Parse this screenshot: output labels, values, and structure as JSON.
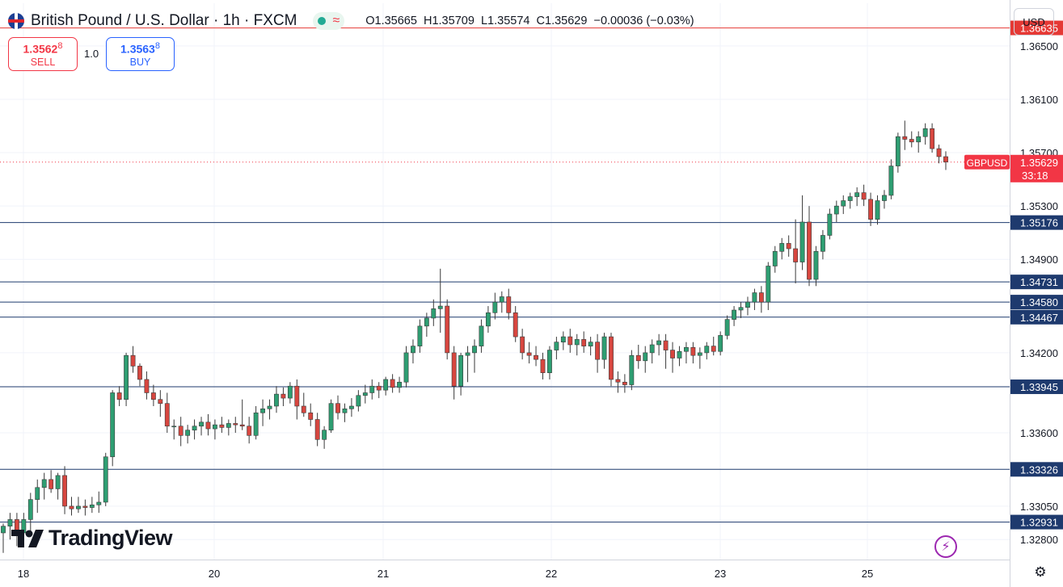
{
  "header": {
    "title": "British Pound / U.S. Dollar · 1h · FXCM",
    "open_label": "O",
    "open": "1.35665",
    "high_label": "H",
    "high": "1.35709",
    "low_label": "L",
    "low": "1.35574",
    "close_label": "C",
    "close": "1.35629",
    "change": "−0.00036 (−0.03%)",
    "pill_icon": "wave-icon"
  },
  "trade": {
    "sell_price": "1.3562",
    "sell_price_sup": "8",
    "sell_label": "SELL",
    "lot": "1.0",
    "buy_price": "1.3563",
    "buy_price_sup": "8",
    "buy_label": "BUY"
  },
  "currency_button": "USD",
  "logo_text": "TradingView",
  "colors": {
    "up": "#2e9e72",
    "down": "#d7463f",
    "level": "#1e3a6e",
    "resistance": "#e53935",
    "price": "#f23645"
  },
  "chart_data": {
    "type": "candlestick",
    "timeframe": "1h",
    "symbol": "GBPUSD",
    "xlabels": [
      "18",
      "20",
      "21",
      "22",
      "23",
      "25"
    ],
    "y_ticks": [
      "1.36500",
      "1.36100",
      "1.35700",
      "1.35300",
      "1.34900",
      "1.34200",
      "1.33600",
      "1.33050",
      "1.32800"
    ],
    "ylim": [
      1.3265,
      1.3682
    ],
    "grid": true,
    "current_price": {
      "label": "GBPUSD",
      "value": "1.35629",
      "countdown": "33:18"
    },
    "resistance_level": "1.36635",
    "levels": [
      "1.35176",
      "1.34731",
      "1.34580",
      "1.34467",
      "1.33945",
      "1.33326",
      "1.32931"
    ],
    "candles": [
      {
        "o": 1.3285,
        "h": 1.3292,
        "l": 1.327,
        "c": 1.329
      },
      {
        "o": 1.329,
        "h": 1.33,
        "l": 1.328,
        "c": 1.3295
      },
      {
        "o": 1.3295,
        "h": 1.33,
        "l": 1.3275,
        "c": 1.3285
      },
      {
        "o": 1.3285,
        "h": 1.33,
        "l": 1.328,
        "c": 1.3295
      },
      {
        "o": 1.3295,
        "h": 1.3315,
        "l": 1.3285,
        "c": 1.331
      },
      {
        "o": 1.331,
        "h": 1.3325,
        "l": 1.33,
        "c": 1.3319
      },
      {
        "o": 1.3319,
        "h": 1.333,
        "l": 1.331,
        "c": 1.3325
      },
      {
        "o": 1.3325,
        "h": 1.3332,
        "l": 1.3315,
        "c": 1.3318
      },
      {
        "o": 1.3318,
        "h": 1.333,
        "l": 1.331,
        "c": 1.3328
      },
      {
        "o": 1.3328,
        "h": 1.3335,
        "l": 1.3299,
        "c": 1.3305
      },
      {
        "o": 1.3305,
        "h": 1.3312,
        "l": 1.3298,
        "c": 1.3303
      },
      {
        "o": 1.3303,
        "h": 1.3312,
        "l": 1.33,
        "c": 1.3305
      },
      {
        "o": 1.3305,
        "h": 1.331,
        "l": 1.3298,
        "c": 1.3304
      },
      {
        "o": 1.3304,
        "h": 1.3312,
        "l": 1.33,
        "c": 1.3306
      },
      {
        "o": 1.3306,
        "h": 1.3316,
        "l": 1.33,
        "c": 1.3308
      },
      {
        "o": 1.3308,
        "h": 1.3345,
        "l": 1.3305,
        "c": 1.3342
      },
      {
        "o": 1.3342,
        "h": 1.3392,
        "l": 1.3335,
        "c": 1.339
      },
      {
        "o": 1.339,
        "h": 1.3395,
        "l": 1.338,
        "c": 1.3385
      },
      {
        "o": 1.3385,
        "h": 1.342,
        "l": 1.338,
        "c": 1.3418
      },
      {
        "o": 1.3418,
        "h": 1.3425,
        "l": 1.3405,
        "c": 1.341
      },
      {
        "o": 1.341,
        "h": 1.3412,
        "l": 1.3395,
        "c": 1.34
      },
      {
        "o": 1.34,
        "h": 1.3406,
        "l": 1.3385,
        "c": 1.339
      },
      {
        "o": 1.339,
        "h": 1.3396,
        "l": 1.338,
        "c": 1.3385
      },
      {
        "o": 1.3385,
        "h": 1.3392,
        "l": 1.3372,
        "c": 1.3382
      },
      {
        "o": 1.3382,
        "h": 1.339,
        "l": 1.336,
        "c": 1.3365
      },
      {
        "o": 1.3365,
        "h": 1.337,
        "l": 1.3355,
        "c": 1.3365
      },
      {
        "o": 1.3365,
        "h": 1.3372,
        "l": 1.335,
        "c": 1.3358
      },
      {
        "o": 1.3358,
        "h": 1.3366,
        "l": 1.3352,
        "c": 1.3362
      },
      {
        "o": 1.3362,
        "h": 1.337,
        "l": 1.3355,
        "c": 1.3365
      },
      {
        "o": 1.3365,
        "h": 1.3372,
        "l": 1.3358,
        "c": 1.3368
      },
      {
        "o": 1.3368,
        "h": 1.3374,
        "l": 1.3358,
        "c": 1.3363
      },
      {
        "o": 1.3363,
        "h": 1.337,
        "l": 1.3355,
        "c": 1.3366
      },
      {
        "o": 1.3366,
        "h": 1.3372,
        "l": 1.336,
        "c": 1.3364
      },
      {
        "o": 1.3364,
        "h": 1.337,
        "l": 1.3358,
        "c": 1.3367
      },
      {
        "o": 1.3367,
        "h": 1.3372,
        "l": 1.336,
        "c": 1.3366
      },
      {
        "o": 1.3366,
        "h": 1.3385,
        "l": 1.3362,
        "c": 1.3365
      },
      {
        "o": 1.3365,
        "h": 1.3372,
        "l": 1.3352,
        "c": 1.3358
      },
      {
        "o": 1.3358,
        "h": 1.338,
        "l": 1.3355,
        "c": 1.3375
      },
      {
        "o": 1.3375,
        "h": 1.3385,
        "l": 1.3365,
        "c": 1.3378
      },
      {
        "o": 1.3378,
        "h": 1.3385,
        "l": 1.337,
        "c": 1.338
      },
      {
        "o": 1.338,
        "h": 1.3395,
        "l": 1.3375,
        "c": 1.3389
      },
      {
        "o": 1.3389,
        "h": 1.3394,
        "l": 1.338,
        "c": 1.3386
      },
      {
        "o": 1.3386,
        "h": 1.3398,
        "l": 1.3382,
        "c": 1.3395
      },
      {
        "o": 1.3395,
        "h": 1.34,
        "l": 1.337,
        "c": 1.338
      },
      {
        "o": 1.338,
        "h": 1.339,
        "l": 1.3372,
        "c": 1.3375
      },
      {
        "o": 1.3375,
        "h": 1.3382,
        "l": 1.3365,
        "c": 1.337
      },
      {
        "o": 1.337,
        "h": 1.3375,
        "l": 1.335,
        "c": 1.3355
      },
      {
        "o": 1.3355,
        "h": 1.3365,
        "l": 1.3348,
        "c": 1.3362
      },
      {
        "o": 1.3362,
        "h": 1.3385,
        "l": 1.336,
        "c": 1.3382
      },
      {
        "o": 1.3382,
        "h": 1.3388,
        "l": 1.337,
        "c": 1.3375
      },
      {
        "o": 1.3375,
        "h": 1.3382,
        "l": 1.3368,
        "c": 1.3378
      },
      {
        "o": 1.3378,
        "h": 1.3386,
        "l": 1.3372,
        "c": 1.338
      },
      {
        "o": 1.338,
        "h": 1.3392,
        "l": 1.3376,
        "c": 1.3388
      },
      {
        "o": 1.3388,
        "h": 1.3396,
        "l": 1.3382,
        "c": 1.339
      },
      {
        "o": 1.339,
        "h": 1.34,
        "l": 1.3385,
        "c": 1.3395
      },
      {
        "o": 1.3395,
        "h": 1.3398,
        "l": 1.3386,
        "c": 1.3392
      },
      {
        "o": 1.3392,
        "h": 1.3402,
        "l": 1.3388,
        "c": 1.34
      },
      {
        "o": 1.34,
        "h": 1.3404,
        "l": 1.339,
        "c": 1.3394
      },
      {
        "o": 1.3394,
        "h": 1.3402,
        "l": 1.339,
        "c": 1.3398
      },
      {
        "o": 1.3398,
        "h": 1.3425,
        "l": 1.3394,
        "c": 1.342
      },
      {
        "o": 1.342,
        "h": 1.343,
        "l": 1.3412,
        "c": 1.3425
      },
      {
        "o": 1.3425,
        "h": 1.3445,
        "l": 1.342,
        "c": 1.344
      },
      {
        "o": 1.344,
        "h": 1.345,
        "l": 1.3432,
        "c": 1.3446
      },
      {
        "o": 1.3446,
        "h": 1.346,
        "l": 1.344,
        "c": 1.3453
      },
      {
        "o": 1.3453,
        "h": 1.3483,
        "l": 1.3435,
        "c": 1.3455
      },
      {
        "o": 1.3455,
        "h": 1.346,
        "l": 1.3415,
        "c": 1.342
      },
      {
        "o": 1.342,
        "h": 1.3425,
        "l": 1.3385,
        "c": 1.3395
      },
      {
        "o": 1.3395,
        "h": 1.342,
        "l": 1.3388,
        "c": 1.3418
      },
      {
        "o": 1.3418,
        "h": 1.3425,
        "l": 1.3398,
        "c": 1.342
      },
      {
        "o": 1.342,
        "h": 1.343,
        "l": 1.3405,
        "c": 1.3425
      },
      {
        "o": 1.3425,
        "h": 1.3445,
        "l": 1.342,
        "c": 1.344
      },
      {
        "o": 1.344,
        "h": 1.3455,
        "l": 1.3435,
        "c": 1.345
      },
      {
        "o": 1.345,
        "h": 1.3465,
        "l": 1.3445,
        "c": 1.3458
      },
      {
        "o": 1.3458,
        "h": 1.3466,
        "l": 1.345,
        "c": 1.3462
      },
      {
        "o": 1.3462,
        "h": 1.3468,
        "l": 1.3445,
        "c": 1.345
      },
      {
        "o": 1.345,
        "h": 1.3455,
        "l": 1.3428,
        "c": 1.3432
      },
      {
        "o": 1.3432,
        "h": 1.3438,
        "l": 1.3415,
        "c": 1.342
      },
      {
        "o": 1.342,
        "h": 1.3428,
        "l": 1.3412,
        "c": 1.3418
      },
      {
        "o": 1.3418,
        "h": 1.3425,
        "l": 1.341,
        "c": 1.3415
      },
      {
        "o": 1.3415,
        "h": 1.342,
        "l": 1.34,
        "c": 1.3405
      },
      {
        "o": 1.3405,
        "h": 1.3425,
        "l": 1.34,
        "c": 1.3422
      },
      {
        "o": 1.3422,
        "h": 1.3432,
        "l": 1.3415,
        "c": 1.3428
      },
      {
        "o": 1.3428,
        "h": 1.3436,
        "l": 1.3422,
        "c": 1.3432
      },
      {
        "o": 1.3432,
        "h": 1.3438,
        "l": 1.342,
        "c": 1.3426
      },
      {
        "o": 1.3426,
        "h": 1.3434,
        "l": 1.3418,
        "c": 1.343
      },
      {
        "o": 1.343,
        "h": 1.3436,
        "l": 1.342,
        "c": 1.3425
      },
      {
        "o": 1.3425,
        "h": 1.3432,
        "l": 1.3418,
        "c": 1.3428
      },
      {
        "o": 1.3428,
        "h": 1.3434,
        "l": 1.3405,
        "c": 1.3415
      },
      {
        "o": 1.3415,
        "h": 1.3435,
        "l": 1.3408,
        "c": 1.3432
      },
      {
        "o": 1.3432,
        "h": 1.3435,
        "l": 1.3395,
        "c": 1.34
      },
      {
        "o": 1.34,
        "h": 1.3406,
        "l": 1.339,
        "c": 1.3398
      },
      {
        "o": 1.3398,
        "h": 1.3404,
        "l": 1.339,
        "c": 1.3396
      },
      {
        "o": 1.3396,
        "h": 1.3422,
        "l": 1.3392,
        "c": 1.3418
      },
      {
        "o": 1.3418,
        "h": 1.3426,
        "l": 1.3408,
        "c": 1.3414
      },
      {
        "o": 1.3414,
        "h": 1.3425,
        "l": 1.3405,
        "c": 1.342
      },
      {
        "o": 1.342,
        "h": 1.343,
        "l": 1.3412,
        "c": 1.3426
      },
      {
        "o": 1.3426,
        "h": 1.3434,
        "l": 1.3418,
        "c": 1.3429
      },
      {
        "o": 1.3429,
        "h": 1.3434,
        "l": 1.3408,
        "c": 1.3422
      },
      {
        "o": 1.3422,
        "h": 1.3428,
        "l": 1.3405,
        "c": 1.3416
      },
      {
        "o": 1.3416,
        "h": 1.3425,
        "l": 1.341,
        "c": 1.3421
      },
      {
        "o": 1.3421,
        "h": 1.3428,
        "l": 1.3412,
        "c": 1.3424
      },
      {
        "o": 1.3424,
        "h": 1.3428,
        "l": 1.3412,
        "c": 1.3418
      },
      {
        "o": 1.3418,
        "h": 1.3424,
        "l": 1.3408,
        "c": 1.342
      },
      {
        "o": 1.342,
        "h": 1.3428,
        "l": 1.3415,
        "c": 1.3425
      },
      {
        "o": 1.3425,
        "h": 1.3432,
        "l": 1.3418,
        "c": 1.3421
      },
      {
        "o": 1.3421,
        "h": 1.3436,
        "l": 1.3418,
        "c": 1.3433
      },
      {
        "o": 1.3433,
        "h": 1.3448,
        "l": 1.343,
        "c": 1.3445
      },
      {
        "o": 1.3445,
        "h": 1.3455,
        "l": 1.344,
        "c": 1.3452
      },
      {
        "o": 1.3452,
        "h": 1.3458,
        "l": 1.3446,
        "c": 1.3454
      },
      {
        "o": 1.3454,
        "h": 1.3462,
        "l": 1.3448,
        "c": 1.3458
      },
      {
        "o": 1.3458,
        "h": 1.3468,
        "l": 1.3452,
        "c": 1.3465
      },
      {
        "o": 1.3465,
        "h": 1.347,
        "l": 1.345,
        "c": 1.3458
      },
      {
        "o": 1.3458,
        "h": 1.3488,
        "l": 1.3452,
        "c": 1.3485
      },
      {
        "o": 1.3485,
        "h": 1.35,
        "l": 1.348,
        "c": 1.3496
      },
      {
        "o": 1.3496,
        "h": 1.3506,
        "l": 1.349,
        "c": 1.3502
      },
      {
        "o": 1.3502,
        "h": 1.3508,
        "l": 1.3492,
        "c": 1.3498
      },
      {
        "o": 1.3498,
        "h": 1.352,
        "l": 1.3472,
        "c": 1.3488
      },
      {
        "o": 1.3488,
        "h": 1.3538,
        "l": 1.3482,
        "c": 1.3518
      },
      {
        "o": 1.3518,
        "h": 1.353,
        "l": 1.347,
        "c": 1.3475
      },
      {
        "o": 1.3475,
        "h": 1.35,
        "l": 1.347,
        "c": 1.3496
      },
      {
        "o": 1.3496,
        "h": 1.3512,
        "l": 1.349,
        "c": 1.3508
      },
      {
        "o": 1.3508,
        "h": 1.3528,
        "l": 1.3505,
        "c": 1.3524
      },
      {
        "o": 1.3524,
        "h": 1.3534,
        "l": 1.3518,
        "c": 1.353
      },
      {
        "o": 1.353,
        "h": 1.3538,
        "l": 1.3524,
        "c": 1.3534
      },
      {
        "o": 1.3534,
        "h": 1.354,
        "l": 1.3528,
        "c": 1.3537
      },
      {
        "o": 1.3537,
        "h": 1.3544,
        "l": 1.353,
        "c": 1.354
      },
      {
        "o": 1.354,
        "h": 1.3546,
        "l": 1.353,
        "c": 1.3535
      },
      {
        "o": 1.3535,
        "h": 1.354,
        "l": 1.3515,
        "c": 1.352
      },
      {
        "o": 1.352,
        "h": 1.3538,
        "l": 1.3516,
        "c": 1.3534
      },
      {
        "o": 1.3534,
        "h": 1.3542,
        "l": 1.3528,
        "c": 1.3538
      },
      {
        "o": 1.3538,
        "h": 1.3565,
        "l": 1.3535,
        "c": 1.356
      },
      {
        "o": 1.356,
        "h": 1.3585,
        "l": 1.3555,
        "c": 1.3582
      },
      {
        "o": 1.3582,
        "h": 1.3594,
        "l": 1.3572,
        "c": 1.358
      },
      {
        "o": 1.358,
        "h": 1.3586,
        "l": 1.3574,
        "c": 1.3578
      },
      {
        "o": 1.3578,
        "h": 1.3586,
        "l": 1.357,
        "c": 1.3582
      },
      {
        "o": 1.3582,
        "h": 1.3592,
        "l": 1.3576,
        "c": 1.3588
      },
      {
        "o": 1.3588,
        "h": 1.3592,
        "l": 1.357,
        "c": 1.3573
      },
      {
        "o": 1.3573,
        "h": 1.3576,
        "l": 1.3562,
        "c": 1.3567
      },
      {
        "o": 1.3567,
        "h": 1.3571,
        "l": 1.3557,
        "c": 1.3563
      }
    ]
  }
}
